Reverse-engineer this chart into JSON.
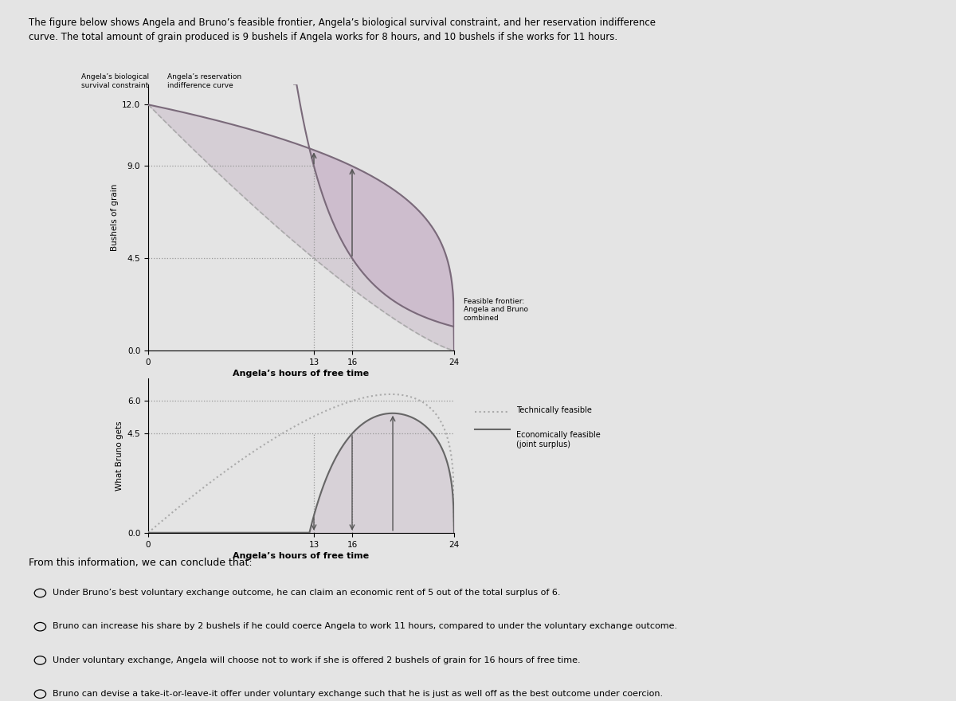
{
  "bg_color": "#e4e4e4",
  "title_text1": "The figure below shows Angela and Bruno’s feasible frontier, Angela’s biological survival constraint, and her reservation indifference",
  "title_text2": "curve. The total amount of grain produced is 9 bushels if Angela works for 8 hours, and 10 bushels if she works for 11 hours.",
  "top_chart": {
    "xlim": [
      0,
      24
    ],
    "ylim": [
      0,
      13
    ],
    "yticks": [
      0,
      4.5,
      9,
      12
    ],
    "xticks": [
      0,
      13,
      16,
      24
    ],
    "xlabel": "Angela’s hours of free time",
    "ylabel": "Bushels of grain",
    "label_bio": "Angela’s biological\nsurvival constraint",
    "label_res": "Angela’s reservation\nindifference curve",
    "label_ff": "Feasible frontier:\nAngela and Bruno\ncombined"
  },
  "bottom_chart": {
    "xlim": [
      0,
      24
    ],
    "ylim": [
      0,
      7
    ],
    "yticks": [
      0,
      4.5,
      6
    ],
    "xticks": [
      0,
      13,
      16,
      24
    ],
    "xlabel": "Angela’s hours of free time",
    "ylabel": "What Bruno gets",
    "legend_tech": "Technically feasible",
    "legend_econ": "Economically feasible\n(joint surplus)"
  },
  "options": [
    "Under Bruno’s best voluntary exchange outcome, he can claim an economic rent of 5 out of the total surplus of 6.",
    "Bruno can increase his share by 2 bushels if he could coerce Angela to work 11 hours, compared to under the voluntary exchange outcome.",
    "Under voluntary exchange, Angela will choose not to work if she is offered 2 bushels of grain for 16 hours of free time.",
    "Bruno can devise a take-it-or-leave-it offer under voluntary exchange such that he is just as well off as the best outcome under coercion."
  ],
  "conclusion_text": "From this information, we can conclude that:",
  "ff_color": "#7a6a7a",
  "bio_color": "#aaaaaa",
  "res_color": "#7a6a7a",
  "shade_light": "#ccc0cc",
  "shade_purple": "#c8b0c8",
  "arrow_color": "#555555",
  "dot_color": "#999999",
  "tech_color": "#aaaaaa",
  "econ_color": "#666666"
}
